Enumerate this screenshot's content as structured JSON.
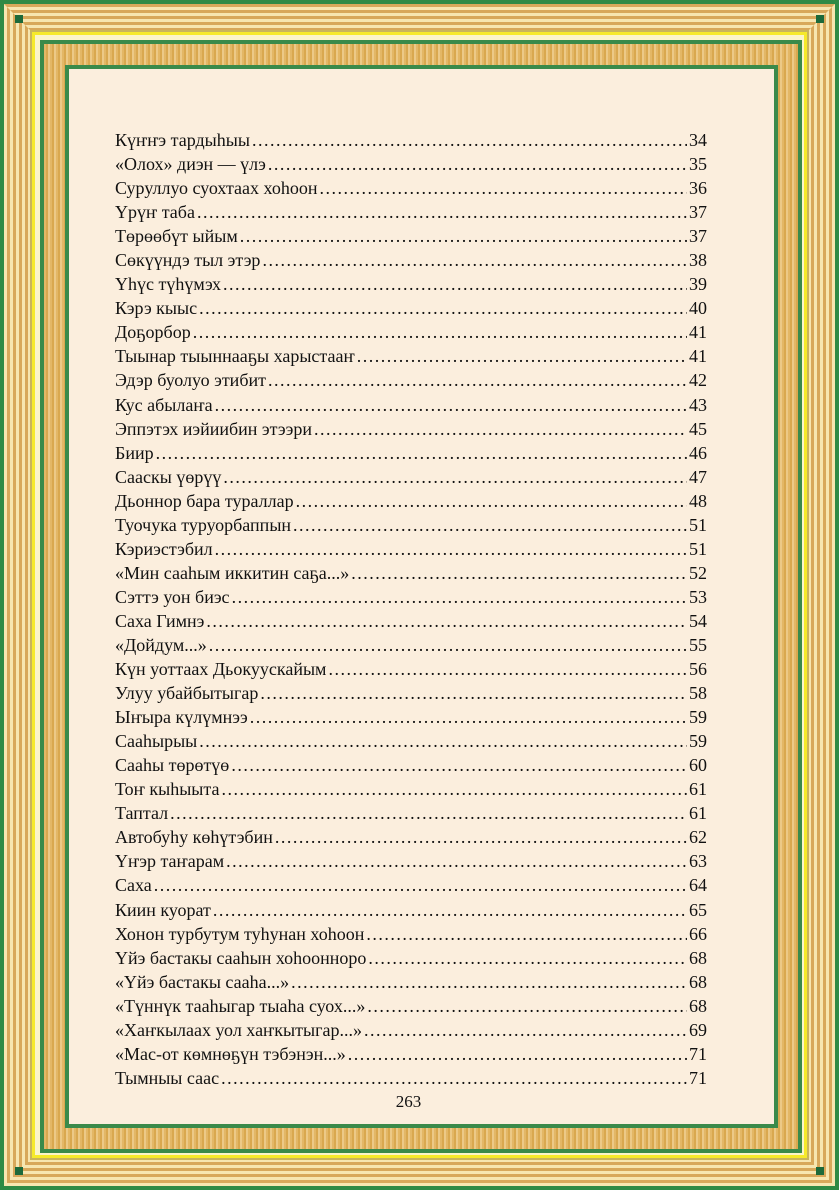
{
  "entries": [
    {
      "title": "Күҥҥэ тардыһыы",
      "page": "34"
    },
    {
      "title": "«Олох» диэн — үлэ",
      "page": "35"
    },
    {
      "title": "Суруллуо суохтаах хоһоон",
      "page": "36"
    },
    {
      "title": "Үрүҥ таба",
      "page": "37"
    },
    {
      "title": "Төрөөбүт ыйым",
      "page": "37"
    },
    {
      "title": "Сөкүүндэ тыл этэр",
      "page": "38"
    },
    {
      "title": "Үһүс түһүмэх",
      "page": "39"
    },
    {
      "title": "Кэрэ кыыс",
      "page": "40"
    },
    {
      "title": "Доҕорбор",
      "page": "41"
    },
    {
      "title": "Тыынар тыыннааҕы харыстааҥ",
      "page": "41"
    },
    {
      "title": "Эдэр буолуо этибит",
      "page": "42"
    },
    {
      "title": "Кус абылаҥа",
      "page": "43"
    },
    {
      "title": "Эппэтэх иэйиибин этээри",
      "page": "45"
    },
    {
      "title": "Биир",
      "page": "46"
    },
    {
      "title": "Сааскы үөрүү",
      "page": "47"
    },
    {
      "title": "Дьоннор бара тураллар",
      "page": "48"
    },
    {
      "title": "Туочука туруорбаппын",
      "page": "51"
    },
    {
      "title": "Кэриэстэбил",
      "page": "51"
    },
    {
      "title": "«Мин сааһым иккитин саҕа...»",
      "page": "52"
    },
    {
      "title": "Сэттэ уон биэс",
      "page": "53"
    },
    {
      "title": "Саха Гимнэ",
      "page": "54"
    },
    {
      "title": "«Дойдум...»",
      "page": "55"
    },
    {
      "title": "Күн уоттаах Дьокуускайым",
      "page": "56"
    },
    {
      "title": "Улуу убайбытыгар",
      "page": "58"
    },
    {
      "title": "Ыҥыра күлүмнээ",
      "page": "59"
    },
    {
      "title": "Сааһырыы",
      "page": "59"
    },
    {
      "title": "Сааһы төрөтүө",
      "page": "60"
    },
    {
      "title": "Тоҥ кыһыыта",
      "page": "61"
    },
    {
      "title": "Таптал",
      "page": "61"
    },
    {
      "title": "Автобуһу көһүтэбин",
      "page": "62"
    },
    {
      "title": "Үҥэр таҥарам",
      "page": "63"
    },
    {
      "title": "Саха",
      "page": "64"
    },
    {
      "title": "Киин куорат",
      "page": "65"
    },
    {
      "title": "Хонон турбутум туһунан хоһоон",
      "page": "66"
    },
    {
      "title": "Үйэ бастакы сааһын хоһоонноро",
      "page": "68"
    },
    {
      "title": "«Үйэ бастакы сааһа...»",
      "page": "68"
    },
    {
      "title": "«Түннүк тааһыгар тыаһа суох...»",
      "page": "68"
    },
    {
      "title": "«Хаҥкылаах уол хаҥкытыгар...»",
      "page": "69"
    },
    {
      "title": "«Мас-от көмнөҕүн тэбэнэн...»",
      "page": "71"
    },
    {
      "title": "Тымныы саас",
      "page": "71"
    }
  ],
  "page_number": "263",
  "colors": {
    "frame_green": "#2f8a45",
    "frame_gold": "#d9a84f",
    "frame_yellow": "#f6ea2a",
    "page_bg": "#fbeedd"
  }
}
